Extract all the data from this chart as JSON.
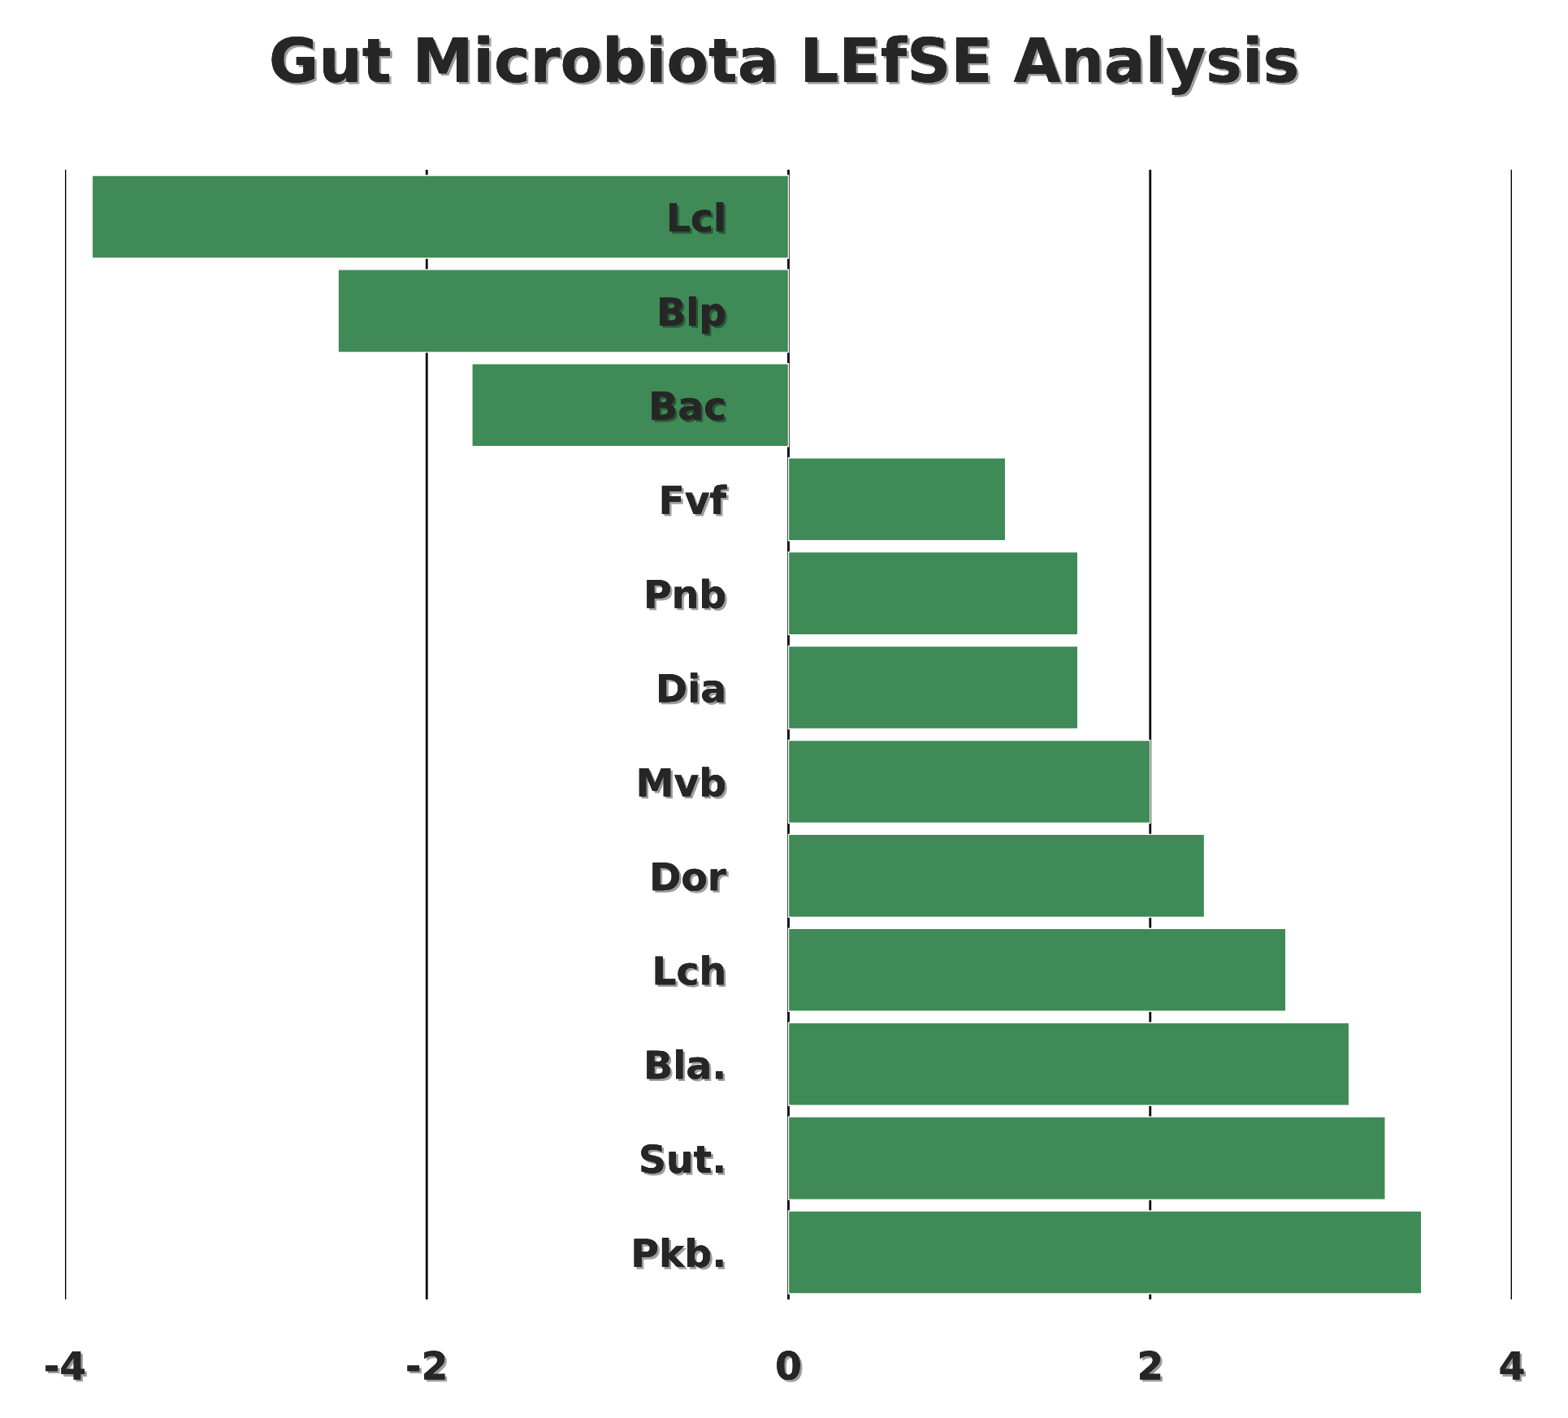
{
  "chart_data": {
    "type": "bar",
    "orientation": "horizontal",
    "title": "Gut Microbiota LEfSE Analysis",
    "categories": [
      "Lcl",
      "Blp",
      "Bac",
      "Fvf",
      "Pnb",
      "Dia",
      "Mvb",
      "Dor",
      "Lch",
      "Bla.",
      "Sut.",
      "Pkb."
    ],
    "values": [
      -3.85,
      -2.49,
      -1.75,
      1.2,
      1.6,
      1.6,
      2.0,
      2.3,
      2.75,
      3.1,
      3.3,
      3.5
    ],
    "color": "#3f8a56",
    "xlim": [
      -4,
      4
    ],
    "xticks": [
      -4,
      -2,
      0,
      2,
      4
    ],
    "grid": "x"
  }
}
